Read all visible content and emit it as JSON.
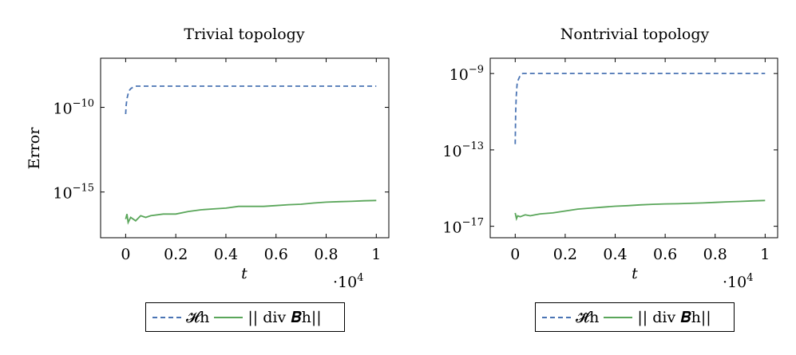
{
  "chart_data": [
    {
      "type": "line",
      "title": "Trivial topology",
      "xlabel": "t",
      "ylabel": "Error",
      "x_multiplier": "·10",
      "x_multiplier_exp": "4",
      "xlim": [
        -0.1,
        1.05
      ],
      "ylim_log10": [
        -17.7,
        -7.1
      ],
      "x_ticks": [
        0,
        0.2,
        0.4,
        0.6,
        0.8,
        1
      ],
      "x_tick_labels": [
        "0",
        "0.2",
        "0.4",
        "0.6",
        "0.8",
        "1"
      ],
      "y_ticks_log10": [
        -10,
        -15
      ],
      "y_tick_base": "10",
      "y_tick_exps": [
        "−10",
        "−15"
      ],
      "legend": [
        "𝓗h",
        "|| div 𝑩h||"
      ],
      "series": [
        {
          "name": "𝓗h",
          "color": "#4a74b4",
          "style": "dashed",
          "x": [
            0.0,
            0.002,
            0.005,
            0.01,
            0.015,
            0.02,
            0.03,
            0.04,
            0.06,
            1.0
          ],
          "log10_y": [
            -10.4,
            -9.9,
            -9.5,
            -9.2,
            -9.0,
            -8.9,
            -8.8,
            -8.75,
            -8.75,
            -8.75
          ]
        },
        {
          "name": "|| div 𝑩h||",
          "color": "#5aa65a",
          "style": "solid",
          "x": [
            0.0,
            0.005,
            0.01,
            0.02,
            0.04,
            0.06,
            0.08,
            0.1,
            0.15,
            0.2,
            0.25,
            0.3,
            0.35,
            0.4,
            0.45,
            0.5,
            0.55,
            0.6,
            0.65,
            0.7,
            0.75,
            0.8,
            0.85,
            0.9,
            0.95,
            1.0
          ],
          "log10_y": [
            -16.6,
            -16.3,
            -16.8,
            -16.5,
            -16.7,
            -16.4,
            -16.5,
            -16.4,
            -16.3,
            -16.3,
            -16.15,
            -16.05,
            -16.0,
            -15.95,
            -15.85,
            -15.85,
            -15.85,
            -15.8,
            -15.75,
            -15.72,
            -15.65,
            -15.6,
            -15.57,
            -15.55,
            -15.52,
            -15.5
          ]
        }
      ]
    },
    {
      "type": "line",
      "title": "Nontrivial topology",
      "xlabel": "t",
      "ylabel": "",
      "x_multiplier": "·10",
      "x_multiplier_exp": "4",
      "xlim": [
        -0.1,
        1.05
      ],
      "ylim_log10": [
        -17.6,
        -8.2
      ],
      "x_ticks": [
        0,
        0.2,
        0.4,
        0.6,
        0.8,
        1
      ],
      "x_tick_labels": [
        "0",
        "0.2",
        "0.4",
        "0.6",
        "0.8",
        "1"
      ],
      "y_ticks_log10": [
        -9,
        -13,
        -17
      ],
      "y_tick_base": "10",
      "y_tick_exps": [
        "−9",
        "−13",
        "−17"
      ],
      "legend": [
        "𝓗̃h",
        "|| div 𝑩h||"
      ],
      "series": [
        {
          "name": "𝓗̃h",
          "color": "#4a74b4",
          "style": "dashed",
          "x": [
            0.0,
            0.002,
            0.004,
            0.006,
            0.008,
            0.01,
            0.015,
            0.02,
            0.03,
            1.0
          ],
          "log10_y": [
            -12.7,
            -11.0,
            -10.2,
            -9.8,
            -9.5,
            -9.4,
            -9.25,
            -9.1,
            -9.0,
            -9.0
          ]
        },
        {
          "name": "|| div 𝑩h||",
          "color": "#5aa65a",
          "style": "solid",
          "x": [
            0.0,
            0.005,
            0.01,
            0.02,
            0.04,
            0.06,
            0.08,
            0.1,
            0.15,
            0.2,
            0.25,
            0.3,
            0.35,
            0.4,
            0.45,
            0.5,
            0.55,
            0.6,
            0.65,
            0.7,
            0.75,
            0.8,
            0.85,
            0.9,
            0.95,
            1.0
          ],
          "log10_y": [
            -16.3,
            -16.6,
            -16.45,
            -16.5,
            -16.4,
            -16.45,
            -16.4,
            -16.35,
            -16.3,
            -16.2,
            -16.1,
            -16.05,
            -16.0,
            -15.95,
            -15.92,
            -15.88,
            -15.85,
            -15.83,
            -15.82,
            -15.8,
            -15.78,
            -15.75,
            -15.72,
            -15.7,
            -15.67,
            -15.65
          ]
        }
      ]
    }
  ]
}
